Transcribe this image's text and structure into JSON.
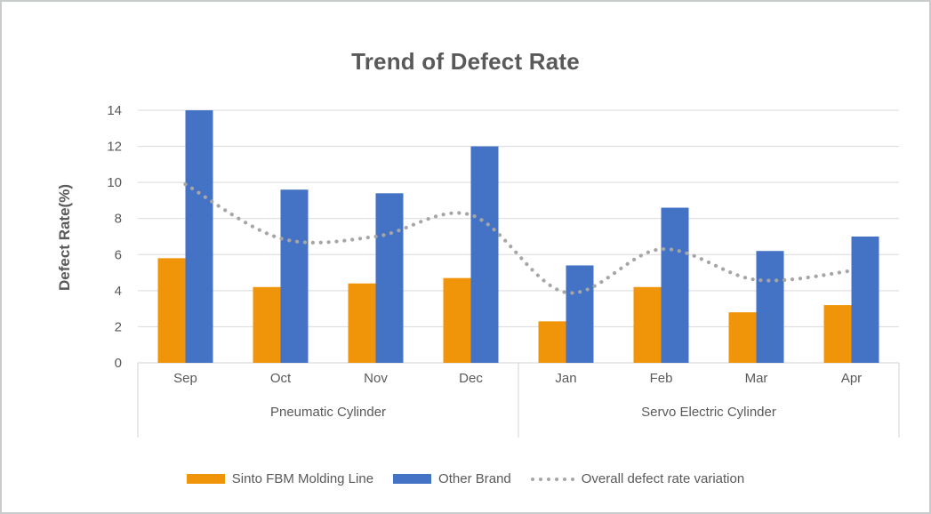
{
  "frame": {
    "background": "#ffffff",
    "border_color": "#c9cccd"
  },
  "colors": {
    "text": "#595959",
    "gridline": "#d9d9d9",
    "axis_line": "#d3d3d3",
    "bar_orange": "#f0940a",
    "bar_blue": "#4472c4",
    "dotted_line": "#a6a6a6"
  },
  "chart_data": {
    "type": "bar",
    "title": "Trend of Defect Rate",
    "xlabel": "",
    "ylabel": "Defect Rate(%)",
    "ylim": [
      0,
      14
    ],
    "yticks": [
      0,
      2,
      4,
      6,
      8,
      10,
      12,
      14
    ],
    "grid": true,
    "legend_position": "bottom",
    "categories": [
      "Sep",
      "Oct",
      "Nov",
      "Dec",
      "Jan",
      "Feb",
      "Mar",
      "Apr"
    ],
    "category_groups": [
      {
        "label": "Pneumatic Cylinder",
        "start": 0,
        "end": 3
      },
      {
        "label": "Servo Electric Cylinder",
        "start": 4,
        "end": 7
      }
    ],
    "series": [
      {
        "name": "Sinto FBM Molding Line",
        "type": "bar",
        "color": "#f0940a",
        "values": [
          5.8,
          4.2,
          4.4,
          4.7,
          2.3,
          4.2,
          2.8,
          3.2
        ]
      },
      {
        "name": "Other Brand",
        "type": "bar",
        "color": "#4472c4",
        "values": [
          14.0,
          9.6,
          9.4,
          12.0,
          5.4,
          8.6,
          6.2,
          7.0
        ]
      },
      {
        "name": "Overall defect rate variation",
        "type": "dotted-line",
        "color": "#a6a6a6",
        "values": [
          9.9,
          6.9,
          7.0,
          8.2,
          3.9,
          6.3,
          4.6,
          5.1
        ]
      }
    ]
  }
}
